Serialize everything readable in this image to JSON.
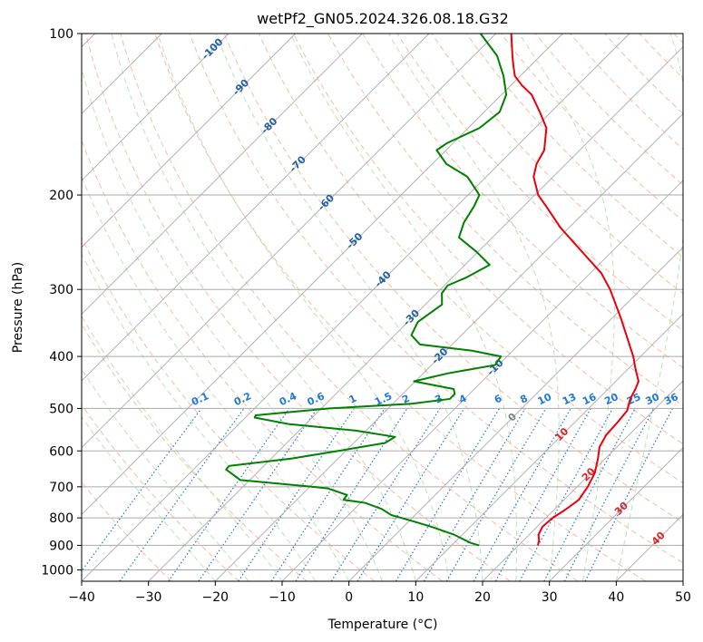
{
  "chart_data": {
    "type": "line",
    "title": "wetPf2_GN05.2024.326.08.18.G32",
    "xlabel": "Temperature (°C)",
    "ylabel": "Pressure (hPa)",
    "xlim": [
      -40,
      50
    ],
    "ylim": [
      1050,
      100
    ],
    "y_scale": "log",
    "x_ticks": [
      -40,
      -30,
      -20,
      -10,
      0,
      10,
      20,
      30,
      40,
      50
    ],
    "x_tick_labels": [
      "−40",
      "−30",
      "−20",
      "−10",
      "0",
      "10",
      "20",
      "30",
      "40",
      "50"
    ],
    "y_ticks": [
      100,
      200,
      300,
      400,
      500,
      600,
      700,
      800,
      900,
      1000
    ],
    "y_tick_labels": [
      "100",
      "200",
      "300",
      "400",
      "500",
      "600",
      "700",
      "800",
      "900",
      "1000"
    ],
    "grid": true,
    "skew_deg": 45,
    "colors": {
      "temperature": "#e8000b",
      "dewpoint": "#008000",
      "isotherm_grid": "#aaaaaa",
      "dry_adiabat": "#f4a582",
      "moist_adiabat": "#a6d8a0",
      "mixing_ratio": "#1f78d4",
      "label_isotherm_cold": "#1f5fa6",
      "label_isotherm_warm": "#d62728",
      "label_zero": "#808080"
    },
    "series": [
      {
        "name": "",
        "role": "temperature",
        "points": [
          [
            900,
            22.9
          ],
          [
            880,
            22.3
          ],
          [
            860,
            21.4
          ],
          [
            830,
            20.8
          ],
          [
            800,
            21.0
          ],
          [
            780,
            21.5
          ],
          [
            760,
            21.9
          ],
          [
            740,
            22.2
          ],
          [
            700,
            21.6
          ],
          [
            660,
            20.6
          ],
          [
            620,
            18.9
          ],
          [
            590,
            17.4
          ],
          [
            560,
            16.6
          ],
          [
            530,
            16.4
          ],
          [
            505,
            16.1
          ],
          [
            480,
            14.8
          ],
          [
            460,
            14.1
          ],
          [
            445,
            13.4
          ],
          [
            420,
            10.9
          ],
          [
            400,
            8.9
          ],
          [
            370,
            5.3
          ],
          [
            340,
            1.4
          ],
          [
            300,
            -4.6
          ],
          [
            280,
            -8.3
          ],
          [
            250,
            -15.8
          ],
          [
            230,
            -21.3
          ],
          [
            210,
            -26.6
          ],
          [
            200,
            -29.5
          ],
          [
            185,
            -32.9
          ],
          [
            175,
            -34.4
          ],
          [
            165,
            -35.3
          ],
          [
            150,
            -38.3
          ],
          [
            140,
            -41.7
          ],
          [
            130,
            -45.5
          ],
          [
            125,
            -48.3
          ],
          [
            120,
            -50.8
          ],
          [
            115,
            -52.5
          ],
          [
            110,
            -54.2
          ],
          [
            100,
            -57.7
          ]
        ]
      },
      {
        "name": "",
        "role": "dewpoint",
        "points": [
          [
            900,
            14.1
          ],
          [
            890,
            12.4
          ],
          [
            860,
            8.8
          ],
          [
            830,
            4.0
          ],
          [
            810,
            0.3
          ],
          [
            790,
            -3.6
          ],
          [
            770,
            -5.9
          ],
          [
            750,
            -9.3
          ],
          [
            740,
            -13.0
          ],
          [
            725,
            -13.2
          ],
          [
            705,
            -17.0
          ],
          [
            700,
            -19.5
          ],
          [
            680,
            -31.4
          ],
          [
            650,
            -35.1
          ],
          [
            640,
            -35.2
          ],
          [
            620,
            -26.9
          ],
          [
            600,
            -21.1
          ],
          [
            580,
            -15.3
          ],
          [
            565,
            -14.7
          ],
          [
            550,
            -21.5
          ],
          [
            535,
            -32.4
          ],
          [
            520,
            -38.6
          ],
          [
            515,
            -38.8
          ],
          [
            500,
            -28.8
          ],
          [
            490,
            -17.2
          ],
          [
            480,
            -12.2
          ],
          [
            470,
            -12.2
          ],
          [
            460,
            -13.1
          ],
          [
            445,
            -20.2
          ],
          [
            430,
            -16.3
          ],
          [
            415,
            -10.5
          ],
          [
            400,
            -10.9
          ],
          [
            390,
            -16.2
          ],
          [
            380,
            -24.8
          ],
          [
            365,
            -27.5
          ],
          [
            345,
            -28.5
          ],
          [
            320,
            -27.5
          ],
          [
            305,
            -29.2
          ],
          [
            295,
            -29.5
          ],
          [
            285,
            -27.9
          ],
          [
            270,
            -26.3
          ],
          [
            255,
            -30.3
          ],
          [
            240,
            -35.0
          ],
          [
            225,
            -36.5
          ],
          [
            210,
            -37.4
          ],
          [
            200,
            -38.3
          ],
          [
            185,
            -42.8
          ],
          [
            175,
            -47.9
          ],
          [
            165,
            -51.4
          ],
          [
            160,
            -50.9
          ],
          [
            150,
            -48.3
          ],
          [
            140,
            -47.7
          ],
          [
            130,
            -49.3
          ],
          [
            120,
            -52.5
          ],
          [
            110,
            -56.5
          ],
          [
            100,
            -62.3
          ]
        ]
      }
    ],
    "isotherm_labels": [
      "-100",
      "-90",
      "-80",
      "-70",
      "-60",
      "-50",
      "-40",
      "-30",
      "-20",
      "-10",
      "0",
      "10",
      "20",
      "30",
      "40"
    ],
    "mixing_ratio_labels": [
      "0.1",
      "0.2",
      "0.4",
      "0.6",
      "1",
      "1.5",
      "2",
      "3",
      "4",
      "6",
      "8",
      "10",
      "13",
      "16",
      "20",
      "25",
      "30",
      "36"
    ]
  }
}
